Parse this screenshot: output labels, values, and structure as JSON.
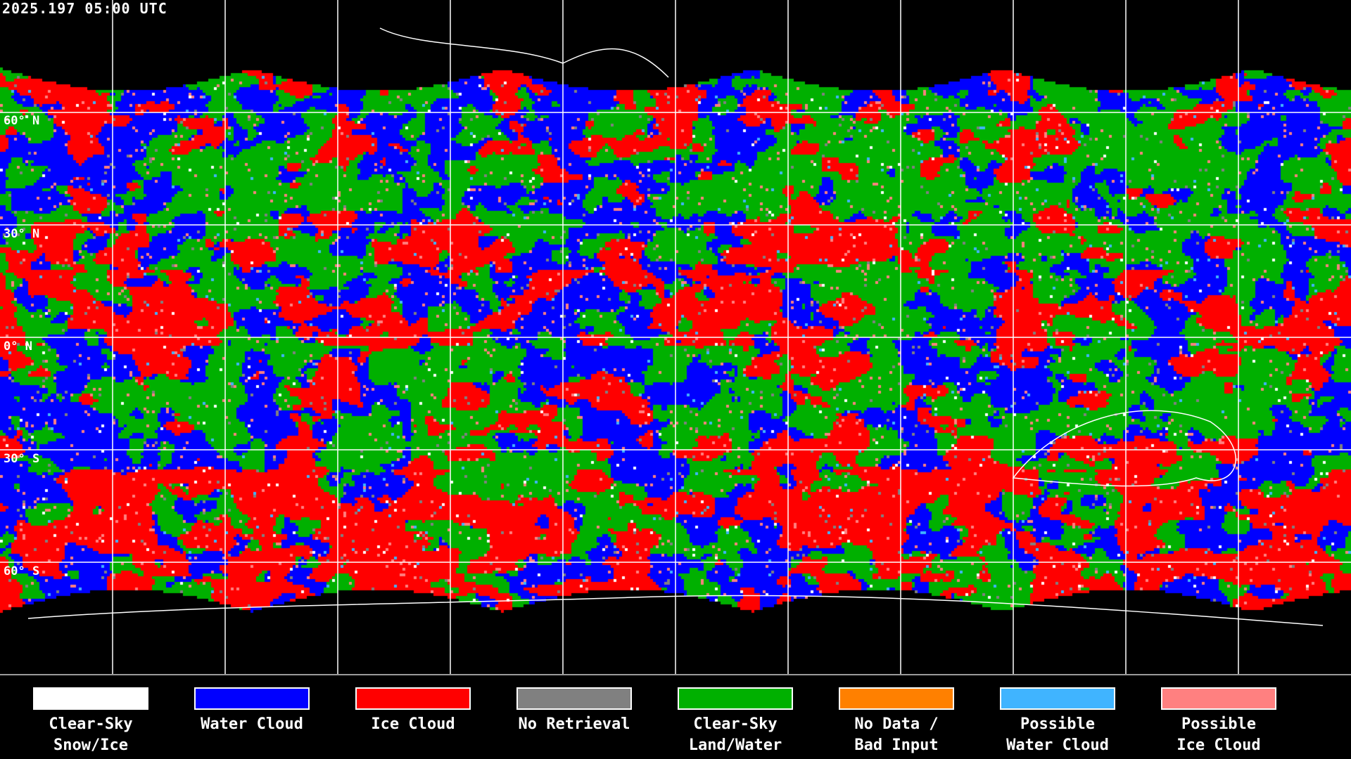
{
  "timestamp": "2025.197 05:00 UTC",
  "map": {
    "projection": "equirectangular",
    "grid_spacing_deg": 30,
    "lat_labels": [
      "60° N",
      "30° N",
      "0° N",
      "30° S",
      "60° S"
    ],
    "grid_color": "#ffffff",
    "coastline_color": "#ffffff",
    "background": "#000000"
  },
  "legend": [
    {
      "line1": "Clear-Sky",
      "line2": "Snow/Ice",
      "color": "#ffffff"
    },
    {
      "line1": "Water Cloud",
      "line2": "",
      "color": "#0000ff"
    },
    {
      "line1": "Ice Cloud",
      "line2": "",
      "color": "#ff0000"
    },
    {
      "line1": "No Retrieval",
      "line2": "",
      "color": "#808080"
    },
    {
      "line1": "Clear-Sky",
      "line2": "Land/Water",
      "color": "#00b000"
    },
    {
      "line1": "No Data /",
      "line2": "Bad Input",
      "color": "#ff8000"
    },
    {
      "line1": "Possible",
      "line2": "Water Cloud",
      "color": "#40b4ff"
    },
    {
      "line1": "Possible",
      "line2": "Ice Cloud",
      "color": "#ff8080"
    }
  ]
}
